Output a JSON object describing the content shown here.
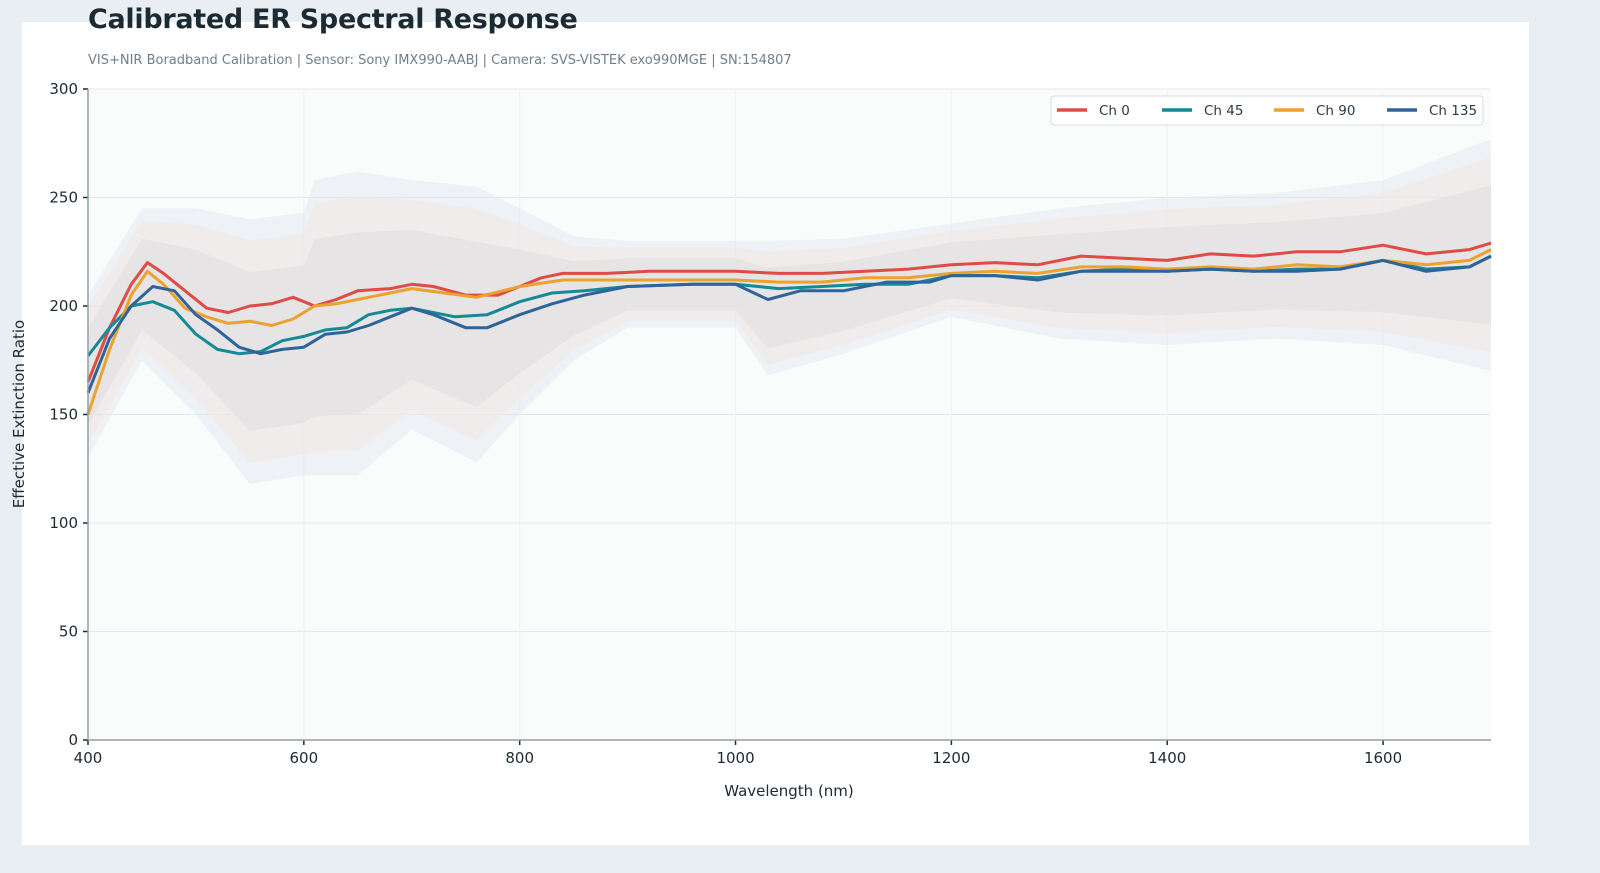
{
  "chart_data": {
    "type": "line",
    "title": "Calibrated ER Spectral Response",
    "subtitle": "VIS+NIR Boradband Calibration  |  Sensor: Sony IMX990-AABJ  |  Camera: SVS-VISTEK exo990MGE  |  SN:154807",
    "xlabel": "Wavelength (nm)",
    "ylabel": "Effective Extinction Ratio",
    "xlim": [
      400,
      1700
    ],
    "ylim": [
      0,
      300
    ],
    "xticks": [
      400,
      600,
      800,
      1000,
      1200,
      1400,
      1600
    ],
    "yticks": [
      0,
      50,
      100,
      150,
      200,
      250,
      300
    ],
    "grid": true,
    "legend": "top-right",
    "series": [
      {
        "name": "Ch 0",
        "color": "#e04b45",
        "x": [
          400,
          420,
          440,
          455,
          470,
          490,
          510,
          530,
          550,
          570,
          590,
          610,
          630,
          650,
          680,
          700,
          720,
          750,
          780,
          800,
          820,
          840,
          880,
          920,
          960,
          1000,
          1040,
          1080,
          1120,
          1160,
          1200,
          1240,
          1280,
          1320,
          1360,
          1400,
          1440,
          1480,
          1520,
          1560,
          1600,
          1640,
          1680,
          1700
        ],
        "y": [
          165,
          190,
          210,
          220,
          215,
          207,
          199,
          197,
          200,
          201,
          204,
          200,
          203,
          207,
          208,
          210,
          209,
          205,
          205,
          209,
          213,
          215,
          215,
          216,
          216,
          216,
          215,
          215,
          216,
          217,
          219,
          220,
          219,
          223,
          222,
          221,
          224,
          223,
          225,
          225,
          228,
          224,
          226,
          229
        ]
      },
      {
        "name": "Ch 45",
        "color": "#138a96",
        "x": [
          400,
          420,
          440,
          460,
          480,
          500,
          520,
          540,
          560,
          580,
          600,
          620,
          640,
          660,
          680,
          700,
          740,
          770,
          800,
          830,
          860,
          900,
          960,
          1000,
          1040,
          1080,
          1120,
          1160,
          1200,
          1240,
          1280,
          1320,
          1360,
          1400,
          1440,
          1480,
          1520,
          1560,
          1600,
          1640,
          1680,
          1700
        ],
        "y": [
          177,
          190,
          200,
          202,
          198,
          187,
          180,
          178,
          179,
          184,
          186,
          189,
          190,
          196,
          198,
          199,
          195,
          196,
          202,
          206,
          207,
          209,
          210,
          210,
          208,
          209,
          210,
          210,
          214,
          214,
          213,
          216,
          217,
          216,
          217,
          216,
          217,
          217,
          221,
          217,
          218,
          223
        ]
      },
      {
        "name": "Ch 90",
        "color": "#eba22f",
        "x": [
          400,
          420,
          440,
          455,
          470,
          490,
          510,
          530,
          550,
          570,
          590,
          610,
          630,
          650,
          680,
          700,
          730,
          760,
          800,
          840,
          900,
          960,
          1000,
          1040,
          1080,
          1120,
          1160,
          1200,
          1240,
          1280,
          1320,
          1360,
          1400,
          1440,
          1480,
          1520,
          1560,
          1600,
          1640,
          1680,
          1700
        ],
        "y": [
          150,
          180,
          205,
          216,
          210,
          199,
          195,
          192,
          193,
          191,
          194,
          200,
          201,
          203,
          206,
          208,
          206,
          204,
          209,
          212,
          212,
          212,
          212,
          211,
          211,
          213,
          213,
          215,
          216,
          215,
          218,
          218,
          217,
          218,
          217,
          219,
          218,
          221,
          219,
          221,
          226
        ]
      },
      {
        "name": "Ch 135",
        "color": "#2e6499",
        "x": [
          400,
          420,
          440,
          460,
          480,
          500,
          520,
          540,
          560,
          580,
          600,
          620,
          640,
          660,
          680,
          700,
          720,
          750,
          770,
          800,
          830,
          860,
          900,
          960,
          1000,
          1030,
          1060,
          1100,
          1140,
          1180,
          1200,
          1240,
          1280,
          1320,
          1360,
          1400,
          1440,
          1480,
          1520,
          1560,
          1600,
          1640,
          1680,
          1700
        ],
        "y": [
          160,
          185,
          200,
          209,
          207,
          196,
          189,
          181,
          178,
          180,
          181,
          187,
          188,
          191,
          195,
          199,
          196,
          190,
          190,
          196,
          201,
          205,
          209,
          210,
          210,
          203,
          207,
          207,
          211,
          211,
          214,
          214,
          212,
          216,
          216,
          216,
          217,
          216,
          216,
          217,
          221,
          216,
          218,
          223
        ]
      }
    ],
    "uncertainty_band": {
      "x": [
        400,
        450,
        500,
        550,
        600,
        610,
        650,
        700,
        760,
        800,
        850,
        900,
        1000,
        1030,
        1100,
        1200,
        1300,
        1400,
        1500,
        1600,
        1700
      ],
      "upper": [
        205,
        245,
        245,
        240,
        243,
        258,
        262,
        258,
        255,
        245,
        232,
        230,
        230,
        230,
        231,
        238,
        245,
        250,
        252,
        258,
        277
      ],
      "lower": [
        130,
        175,
        150,
        118,
        122,
        122,
        122,
        143,
        128,
        150,
        175,
        190,
        190,
        168,
        178,
        195,
        185,
        182,
        185,
        182,
        170
      ]
    }
  }
}
